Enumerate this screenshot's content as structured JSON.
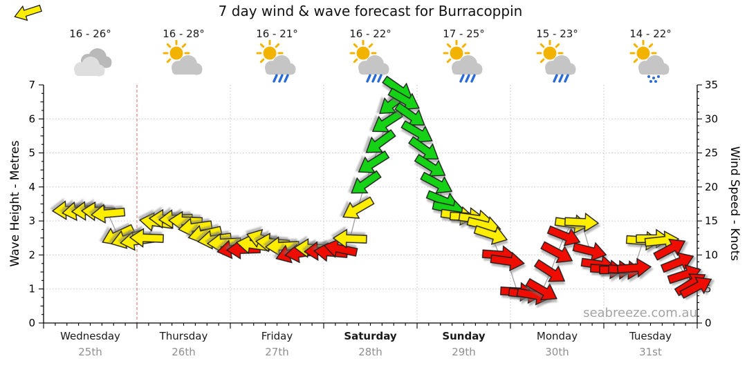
{
  "title": "7 day wind & wave forecast for Burracoppin",
  "watermark": "seabreeze.com.au",
  "days": [
    {
      "name": "Wednesday",
      "date": "25th",
      "temp": "16 - 26°",
      "icon": "cloudy",
      "bold": false
    },
    {
      "name": "Thursday",
      "date": "26th",
      "temp": "16 - 28°",
      "icon": "sun-cloud",
      "bold": false
    },
    {
      "name": "Friday",
      "date": "27th",
      "temp": "16 - 21°",
      "icon": "sun-cloud-rain",
      "bold": false
    },
    {
      "name": "Saturday",
      "date": "28th",
      "temp": "16 - 22°",
      "icon": "sun-cloud-rain",
      "bold": true
    },
    {
      "name": "Sunday",
      "date": "29th",
      "temp": "17 - 25°",
      "icon": "sun-cloud-rain",
      "bold": true
    },
    {
      "name": "Monday",
      "date": "30th",
      "temp": "15 - 23°",
      "icon": "sun-cloud-rain",
      "bold": false
    },
    {
      "name": "Tuesday",
      "date": "31st",
      "temp": "14 - 22°",
      "icon": "sun-cloud-drizzle",
      "bold": false
    }
  ],
  "colors": {
    "arrow_yellow": "#ffee00",
    "arrow_red": "#ee1100",
    "arrow_green": "#16d216",
    "arrow_outline": "#1b1b1b",
    "grid": "#c0c0c0",
    "now_line": "#e88078",
    "connector": "#999999",
    "sun": "#f2b200",
    "cloud": "#c5c5c5",
    "cloud_back": "#b9b9b9",
    "cloud_front": "#dedede",
    "rain": "#2a6bd8",
    "date_text": "#8f8f8f",
    "watermark_text": "#a3a3a3"
  },
  "chart_data": {
    "type": "line",
    "title": "7 day wind & wave forecast for Burracoppin",
    "categories": [
      "Wednesday 25th",
      "Thursday 26th",
      "Friday 27th",
      "Saturday 28th",
      "Sunday 29th",
      "Monday 30th",
      "Tuesday 31st"
    ],
    "left_axis": {
      "label": "Wave Height - Metres",
      "range": [
        0,
        7
      ],
      "ticks": [
        0,
        1,
        2,
        3,
        4,
        5,
        6,
        7
      ]
    },
    "right_axis": {
      "label": "Wind Speed - Knots",
      "range": [
        0,
        35
      ],
      "ticks": [
        0,
        5,
        10,
        15,
        20,
        25,
        30,
        35
      ]
    },
    "grid": true,
    "now_marker_day_position": 1.0,
    "arrows_note": "each arrow = [day_position 0-7, wind_speed_knots, arrow_rotation_deg (0=E, 90=S, 180=W, 270=N), color y|r|g]",
    "arrows": [
      [
        0.274,
        16.6,
        177,
        "y"
      ],
      [
        0.378,
        16.5,
        172,
        "y"
      ],
      [
        0.481,
        16.5,
        177,
        "y"
      ],
      [
        0.585,
        16.4,
        182,
        "y"
      ],
      [
        0.689,
        16.1,
        175,
        "y"
      ],
      [
        0.793,
        12.9,
        155,
        "y"
      ],
      [
        0.896,
        12.4,
        162,
        "y"
      ],
      [
        1.0,
        12.1,
        172,
        "y"
      ],
      [
        1.104,
        12.5,
        182,
        "y"
      ],
      [
        1.207,
        14.8,
        188,
        "y"
      ],
      [
        1.311,
        15.3,
        182,
        "y"
      ],
      [
        1.415,
        15.3,
        177,
        "y"
      ],
      [
        1.519,
        15.0,
        182,
        "y"
      ],
      [
        1.622,
        14.1,
        172,
        "y"
      ],
      [
        1.726,
        13.1,
        167,
        "y"
      ],
      [
        1.83,
        12.3,
        172,
        "y"
      ],
      [
        1.933,
        11.8,
        177,
        "y"
      ],
      [
        2.037,
        10.9,
        170,
        "r"
      ],
      [
        2.141,
        10.8,
        178,
        "r"
      ],
      [
        2.244,
        11.5,
        188,
        "y"
      ],
      [
        2.348,
        12.3,
        198,
        "y"
      ],
      [
        2.452,
        11.8,
        185,
        "y"
      ],
      [
        2.556,
        11.3,
        177,
        "y"
      ],
      [
        2.659,
        10.3,
        160,
        "r"
      ],
      [
        2.763,
        10.3,
        172,
        "r"
      ],
      [
        2.867,
        11.0,
        182,
        "y"
      ],
      [
        2.97,
        10.6,
        177,
        "r"
      ],
      [
        3.074,
        10.4,
        185,
        "r"
      ],
      [
        3.178,
        10.9,
        192,
        "r"
      ],
      [
        3.281,
        12.4,
        182,
        "y"
      ],
      [
        3.363,
        16.8,
        150,
        "y"
      ],
      [
        3.444,
        20.5,
        145,
        "g"
      ],
      [
        3.526,
        23.5,
        148,
        "g"
      ],
      [
        3.6,
        26.5,
        144,
        "g"
      ],
      [
        3.674,
        29.5,
        147,
        "g"
      ],
      [
        3.741,
        32.3,
        142,
        "g"
      ],
      [
        3.8,
        34.4,
        35,
        "g"
      ],
      [
        3.867,
        32.8,
        30,
        "g"
      ],
      [
        3.933,
        30.5,
        35,
        "g"
      ],
      [
        4.007,
        28.0,
        30,
        "g"
      ],
      [
        4.081,
        25.5,
        35,
        "g"
      ],
      [
        4.148,
        23.0,
        32,
        "g"
      ],
      [
        4.215,
        20.5,
        28,
        "g"
      ],
      [
        4.281,
        18.0,
        22,
        "g"
      ],
      [
        4.348,
        16.8,
        12,
        "g"
      ],
      [
        4.437,
        15.8,
        8,
        "y"
      ],
      [
        4.533,
        15.6,
        3,
        "y"
      ],
      [
        4.63,
        15.3,
        8,
        "y"
      ],
      [
        4.719,
        14.4,
        14,
        "y"
      ],
      [
        4.793,
        13.0,
        18,
        "y"
      ],
      [
        4.881,
        10.0,
        4,
        "r"
      ],
      [
        4.97,
        9.1,
        8,
        "r"
      ],
      [
        5.074,
        4.6,
        3,
        "r"
      ],
      [
        5.163,
        4.3,
        6,
        "r"
      ],
      [
        5.252,
        4.1,
        10,
        "r"
      ],
      [
        5.341,
        4.8,
        30,
        "r"
      ],
      [
        5.43,
        7.5,
        33,
        "r"
      ],
      [
        5.504,
        10.3,
        28,
        "r"
      ],
      [
        5.578,
        12.8,
        22,
        "r"
      ],
      [
        5.659,
        14.6,
        8,
        "y"
      ],
      [
        5.763,
        14.8,
        3,
        "y"
      ],
      [
        5.852,
        10.6,
        14,
        "r"
      ],
      [
        5.941,
        8.6,
        8,
        "r"
      ],
      [
        6.037,
        7.9,
        4,
        "r"
      ],
      [
        6.133,
        7.8,
        0,
        "r"
      ],
      [
        6.23,
        7.8,
        4,
        "r"
      ],
      [
        6.326,
        8.1,
        -4,
        "r"
      ],
      [
        6.422,
        12.1,
        4,
        "y"
      ],
      [
        6.526,
        12.4,
        0,
        "y"
      ],
      [
        6.622,
        12.1,
        -6,
        "y"
      ],
      [
        6.711,
        10.9,
        -28,
        "r"
      ],
      [
        6.793,
        8.9,
        -22,
        "r"
      ],
      [
        6.867,
        7.1,
        -18,
        "r"
      ],
      [
        6.933,
        5.8,
        -32,
        "r"
      ],
      [
        6.993,
        5.3,
        -28,
        "r"
      ]
    ]
  }
}
